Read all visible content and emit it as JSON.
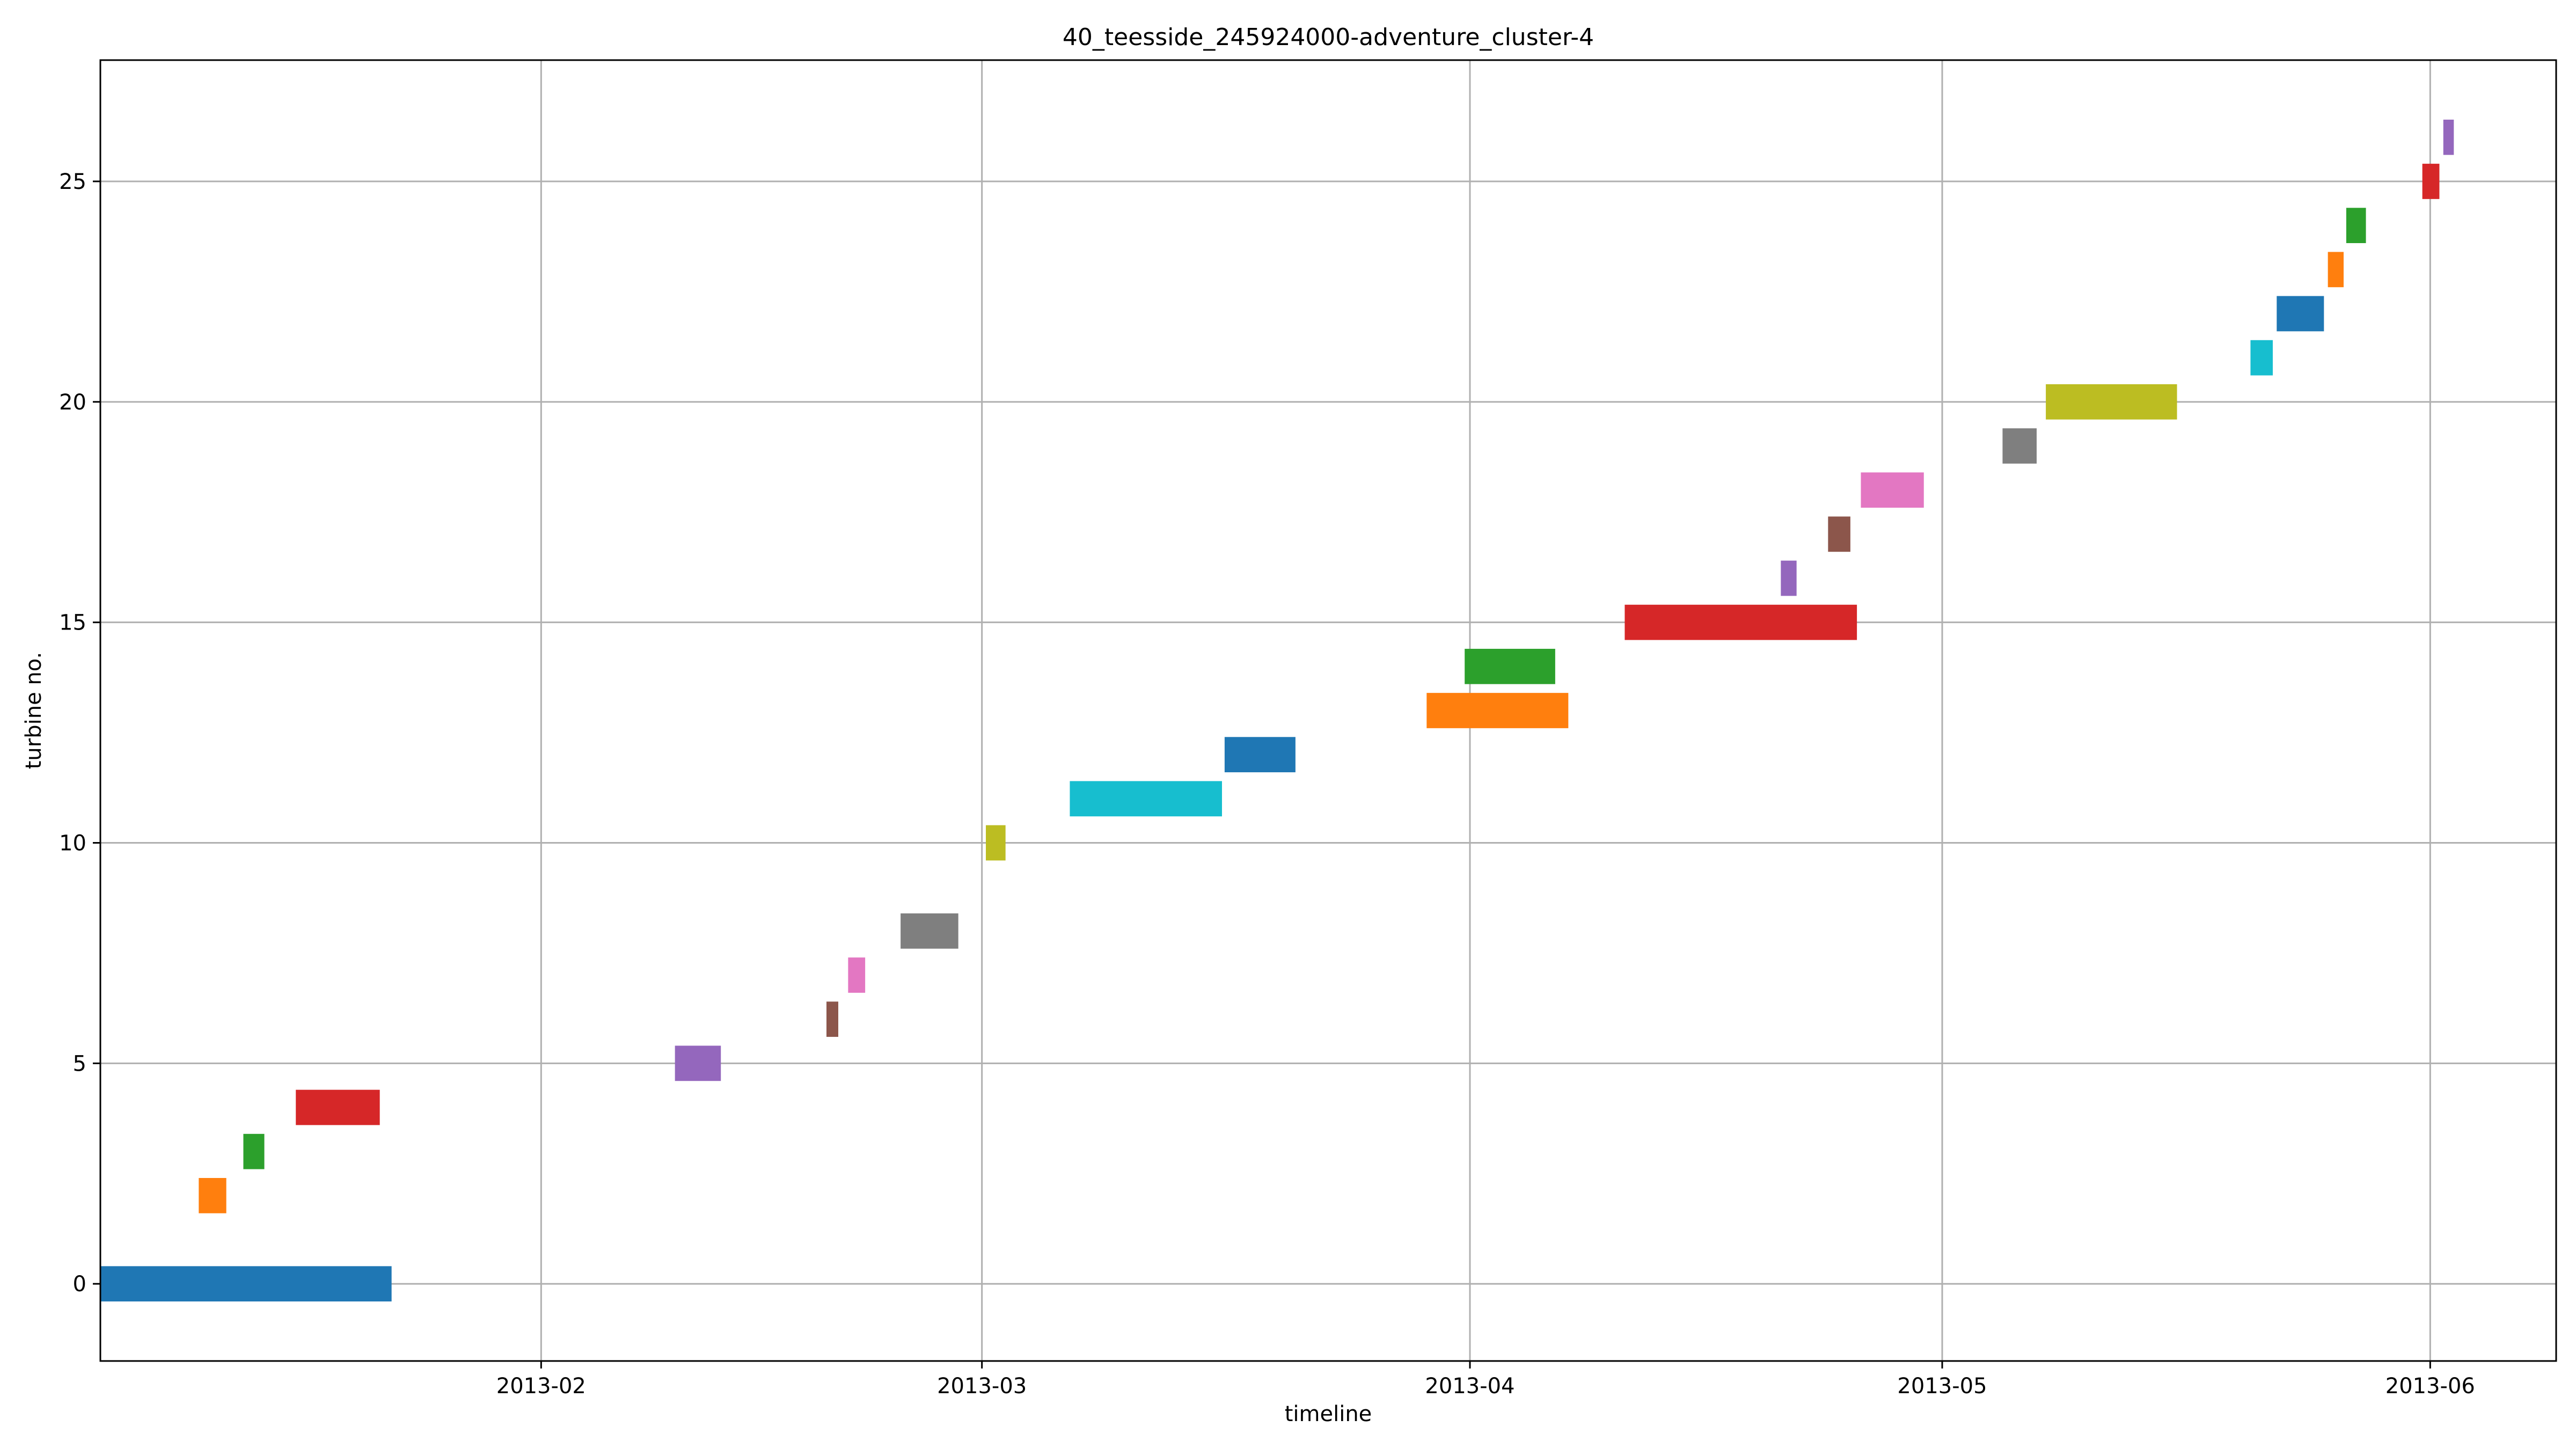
{
  "chart_data": {
    "type": "gantt",
    "title": "40_teesside_245924000-adventure_cluster-4",
    "xlabel": "timeline",
    "ylabel": "turbine no.",
    "x_scale": "date",
    "xlim": [
      "2013-01-04",
      "2013-06-09"
    ],
    "ylim": [
      -1.75,
      27.75
    ],
    "x_ticks": [
      "2013-02-01",
      "2013-03-01",
      "2013-04-01",
      "2013-05-01",
      "2013-06-01"
    ],
    "x_tick_labels": [
      "2013-02",
      "2013-03",
      "2013-04",
      "2013-05",
      "2013-06"
    ],
    "y_ticks": [
      0,
      5,
      10,
      15,
      20,
      25
    ],
    "grid": true,
    "bar_height": 0.8,
    "colors": [
      "#1f77b4",
      "#ff7f0e",
      "#2ca02c",
      "#d62728",
      "#9467bd",
      "#8c564b",
      "#e377c2",
      "#7f7f7f",
      "#bcbd22",
      "#17becf"
    ],
    "bars": [
      {
        "y": 0,
        "start": "2013-01-04 00:00",
        "end": "2013-01-22 12:00",
        "color": "#1f77b4"
      },
      {
        "y": 2,
        "start": "2013-01-10 06:00",
        "end": "2013-01-12 00:00",
        "color": "#ff7f0e"
      },
      {
        "y": 3,
        "start": "2013-01-13 02:00",
        "end": "2013-01-14 10:00",
        "color": "#2ca02c"
      },
      {
        "y": 4,
        "start": "2013-01-16 10:00",
        "end": "2013-01-21 18:00",
        "color": "#d62728"
      },
      {
        "y": 5,
        "start": "2013-02-09 12:00",
        "end": "2013-02-12 10:00",
        "color": "#9467bd"
      },
      {
        "y": 6,
        "start": "2013-02-19 03:00",
        "end": "2013-02-19 21:00",
        "color": "#8c564b"
      },
      {
        "y": 7,
        "start": "2013-02-20 12:00",
        "end": "2013-02-21 14:00",
        "color": "#e377c2"
      },
      {
        "y": 8,
        "start": "2013-02-23 20:00",
        "end": "2013-02-27 12:00",
        "color": "#7f7f7f"
      },
      {
        "y": 10,
        "start": "2013-03-01 06:00",
        "end": "2013-03-02 12:00",
        "color": "#bcbd22"
      },
      {
        "y": 11,
        "start": "2013-03-06 14:00",
        "end": "2013-03-16 06:00",
        "color": "#17becf"
      },
      {
        "y": 12,
        "start": "2013-03-16 10:00",
        "end": "2013-03-20 22:00",
        "color": "#1f77b4"
      },
      {
        "y": 13,
        "start": "2013-03-29 06:00",
        "end": "2013-04-07 06:00",
        "color": "#ff7f0e"
      },
      {
        "y": 14,
        "start": "2013-03-31 16:00",
        "end": "2013-04-06 10:00",
        "color": "#2ca02c"
      },
      {
        "y": 15,
        "start": "2013-04-10 20:00",
        "end": "2013-04-25 14:00",
        "color": "#d62728"
      },
      {
        "y": 16,
        "start": "2013-04-20 18:00",
        "end": "2013-04-21 18:00",
        "color": "#9467bd"
      },
      {
        "y": 17,
        "start": "2013-04-23 18:00",
        "end": "2013-04-25 04:00",
        "color": "#8c564b"
      },
      {
        "y": 18,
        "start": "2013-04-25 20:00",
        "end": "2013-04-29 20:00",
        "color": "#e377c2"
      },
      {
        "y": 19,
        "start": "2013-05-04 20:00",
        "end": "2013-05-07 00:00",
        "color": "#7f7f7f"
      },
      {
        "y": 20,
        "start": "2013-05-07 14:00",
        "end": "2013-05-15 22:00",
        "color": "#bcbd22"
      },
      {
        "y": 21,
        "start": "2013-05-20 14:00",
        "end": "2013-05-22 00:00",
        "color": "#17becf"
      },
      {
        "y": 22,
        "start": "2013-05-22 06:00",
        "end": "2013-05-25 06:00",
        "color": "#1f77b4"
      },
      {
        "y": 23,
        "start": "2013-05-25 12:00",
        "end": "2013-05-26 12:00",
        "color": "#ff7f0e"
      },
      {
        "y": 24,
        "start": "2013-05-26 16:00",
        "end": "2013-05-27 22:00",
        "color": "#2ca02c"
      },
      {
        "y": 25,
        "start": "2013-05-31 12:00",
        "end": "2013-06-01 14:00",
        "color": "#d62728"
      },
      {
        "y": 26,
        "start": "2013-06-01 20:00",
        "end": "2013-06-02 12:00",
        "color": "#9467bd"
      }
    ]
  }
}
